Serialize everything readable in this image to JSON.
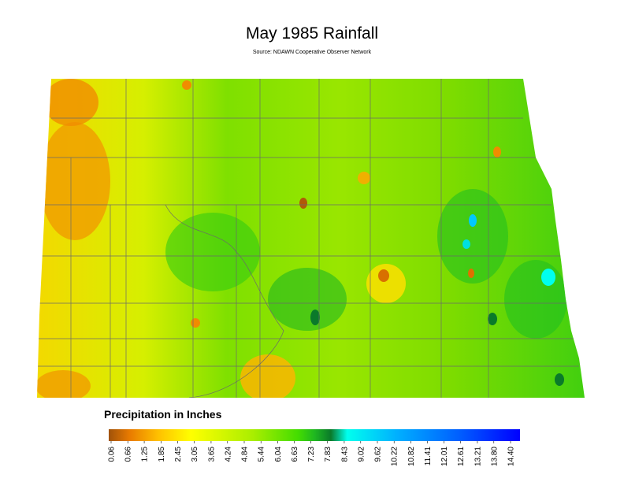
{
  "title": "May 1985 Rainfall",
  "subtitle": "Source: NDAWN Cooperative Observer Network",
  "legend": {
    "title": "Precipitation in Inches",
    "ticks": [
      0.06,
      0.66,
      1.25,
      1.85,
      2.45,
      3.05,
      3.65,
      4.24,
      4.84,
      5.44,
      6.04,
      6.63,
      7.23,
      7.83,
      8.43,
      9.02,
      9.62,
      10.22,
      10.82,
      11.41,
      12.01,
      12.61,
      13.21,
      {
        "value": 13.8,
        "label": "13.80"
      },
      {
        "value": 14.4,
        "label": "14.40"
      }
    ]
  }
}
